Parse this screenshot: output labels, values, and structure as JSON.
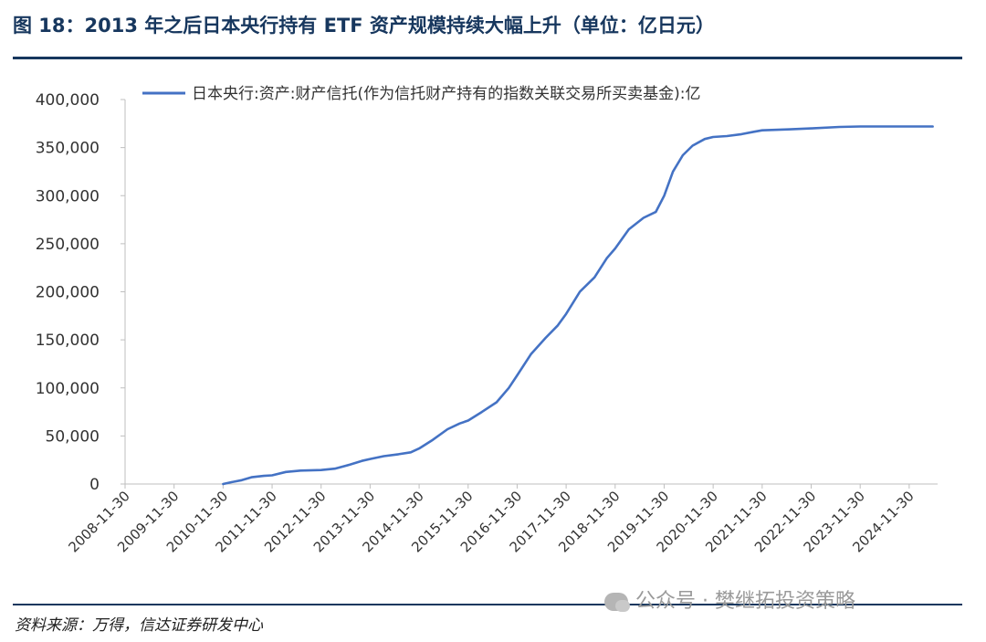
{
  "header": {
    "title": "图 18：2013 年之后日本央行持有 ETF 资产规模持续大幅上升（单位：亿日元）"
  },
  "footer": {
    "source": "资料来源：万得，信达证券研发中心",
    "watermark": "公众号 · 樊继拓投资策略"
  },
  "colors": {
    "series": "#4472c4",
    "rule": "#17375e",
    "axis": "#bfbfbf"
  },
  "chart_data": {
    "type": "line",
    "title": "",
    "xlabel": "",
    "ylabel": "",
    "ylim": [
      0,
      400000
    ],
    "y_ticks": [
      "0",
      "50,000",
      "100,000",
      "150,000",
      "200,000",
      "250,000",
      "300,000",
      "350,000",
      "400,000"
    ],
    "x_ticks": [
      "2008-11-30",
      "2009-11-30",
      "2010-11-30",
      "2011-11-30",
      "2012-11-30",
      "2013-11-30",
      "2014-11-30",
      "2015-11-30",
      "2016-11-30",
      "2017-11-30",
      "2018-11-30",
      "2019-11-30",
      "2020-11-30",
      "2021-11-30",
      "2022-11-30",
      "2023-11-30",
      "2024-11-30"
    ],
    "grid": false,
    "legend_position": "top",
    "series": [
      {
        "name": "日本央行:资产:财产信托(作为信托财产持有的指数关联交易所买卖基金):亿",
        "x": [
          2010.92,
          2011.1,
          2011.3,
          2011.5,
          2011.75,
          2011.92,
          2012.2,
          2012.5,
          2012.92,
          2013.2,
          2013.5,
          2013.75,
          2013.92,
          2014.2,
          2014.5,
          2014.75,
          2014.92,
          2015.2,
          2015.5,
          2015.75,
          2015.92,
          2016.2,
          2016.5,
          2016.75,
          2016.92,
          2017.2,
          2017.5,
          2017.75,
          2017.92,
          2018.2,
          2018.5,
          2018.75,
          2018.92,
          2019.2,
          2019.5,
          2019.75,
          2019.92,
          2020.1,
          2020.3,
          2020.5,
          2020.75,
          2020.92,
          2021.2,
          2021.5,
          2021.75,
          2021.92,
          2022.5,
          2022.92,
          2023.5,
          2023.92,
          2024.5,
          2024.92,
          2025.4
        ],
        "y": [
          0,
          2000,
          4000,
          7000,
          8500,
          9000,
          12500,
          14000,
          14500,
          16000,
          20000,
          24000,
          26000,
          29000,
          31000,
          33000,
          37000,
          46000,
          57000,
          63000,
          66000,
          75000,
          85000,
          100000,
          113000,
          135000,
          152000,
          165000,
          177000,
          200000,
          215000,
          235000,
          245000,
          265000,
          277000,
          283000,
          300000,
          325000,
          342000,
          352000,
          359000,
          361000,
          362000,
          364000,
          366500,
          368000,
          369000,
          370000,
          371500,
          372000,
          372000,
          372000,
          372000
        ]
      }
    ]
  }
}
